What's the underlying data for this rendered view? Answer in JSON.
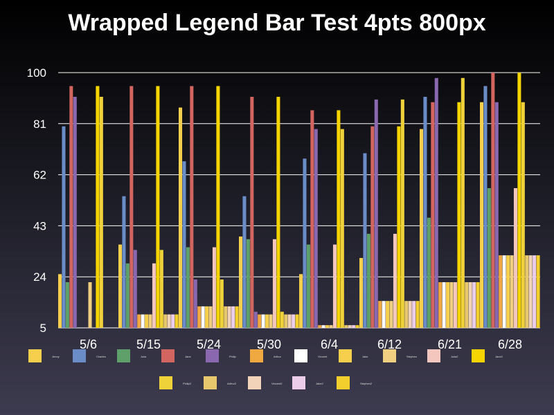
{
  "chart_data": {
    "type": "bar",
    "title": "Wrapped Legend Bar Test 4pts 800px",
    "xlabel": "",
    "ylabel": "",
    "ylim": [
      5,
      100
    ],
    "yticks": [
      "5",
      "24",
      "43",
      "62",
      "81",
      "100"
    ],
    "grid": true,
    "legend_position": "bottom",
    "categories": [
      "5/6",
      "5/15",
      "5/24",
      "5/30",
      "6/4",
      "6/12",
      "6/21",
      "6/28"
    ],
    "series": [
      {
        "name": "Jenny",
        "color": "#f6d04d",
        "values": [
          25,
          36,
          87,
          39,
          25,
          31,
          79,
          89
        ]
      },
      {
        "name": "Charles",
        "color": "#6a8cc7",
        "values": [
          80,
          54,
          67,
          54,
          68,
          70,
          91,
          95
        ]
      },
      {
        "name": "Julia",
        "color": "#5fa06a",
        "values": [
          22,
          29,
          35,
          38,
          36,
          40,
          46,
          57
        ]
      },
      {
        "name": "Jane",
        "color": "#d2655f",
        "values": [
          95,
          95,
          95,
          91,
          86,
          80,
          89,
          100
        ]
      },
      {
        "name": "Philip",
        "color": "#8a68b0",
        "values": [
          91,
          34,
          23,
          11,
          79,
          90,
          98,
          89
        ]
      },
      {
        "name": "Arthur",
        "color": "#f0a841",
        "values": [
          5,
          10,
          13,
          10,
          6,
          15,
          22,
          32
        ]
      },
      {
        "name": "Vincent",
        "color": "#ffffff",
        "values": [
          5,
          10,
          13,
          10,
          6,
          15,
          22,
          32
        ]
      },
      {
        "name": "Jake",
        "color": "#f6d04d",
        "values": [
          5,
          10,
          13,
          10,
          6,
          15,
          22,
          32
        ]
      },
      {
        "name": "Stephen",
        "color": "#f0d080",
        "values": [
          22,
          10,
          13,
          10,
          6,
          15,
          22,
          32
        ]
      },
      {
        "name": "Julia2",
        "color": "#f3c7bd",
        "values": [
          5,
          29,
          35,
          38,
          36,
          40,
          22,
          57
        ]
      },
      {
        "name": "Jane2",
        "color": "#f5d400",
        "values": [
          95,
          95,
          95,
          91,
          86,
          80,
          89,
          100
        ]
      },
      {
        "name": "Philip2",
        "color": "#efd23a",
        "values": [
          91,
          34,
          23,
          11,
          79,
          90,
          98,
          89
        ]
      },
      {
        "name": "Arthur2",
        "color": "#e8c86c",
        "values": [
          5,
          10,
          13,
          10,
          6,
          15,
          22,
          32
        ]
      },
      {
        "name": "Vincent2",
        "color": "#f0d3b8",
        "values": [
          5,
          10,
          13,
          10,
          6,
          15,
          22,
          32
        ]
      },
      {
        "name": "Jake2",
        "color": "#ebcdea",
        "values": [
          5,
          10,
          13,
          10,
          6,
          15,
          22,
          32
        ]
      },
      {
        "name": "Stephen2",
        "color": "#f2cf2c",
        "values": [
          5,
          10,
          13,
          10,
          6,
          15,
          22,
          32
        ]
      }
    ]
  }
}
